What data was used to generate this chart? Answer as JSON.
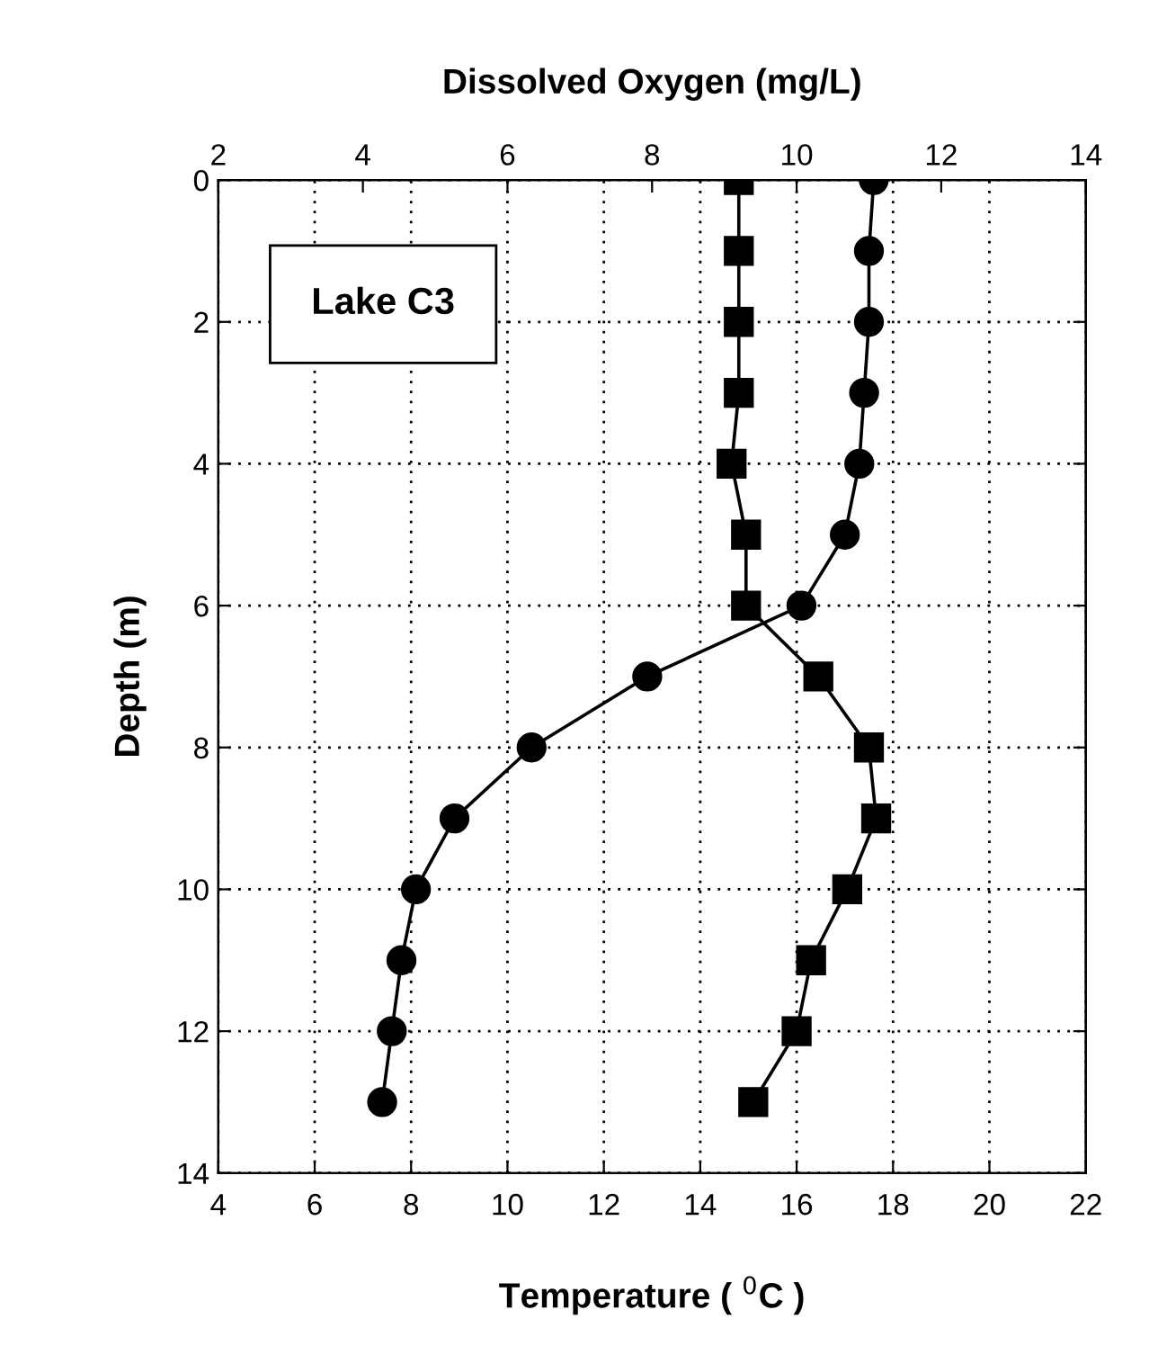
{
  "chart_data": {
    "type": "line",
    "xlabel": "Temperature ( $^{0}$C )",
    "x2label": "Dissolved Oxygen (mg/L)",
    "ylabel": "Depth (m)",
    "annotations": [
      "Lake C3"
    ],
    "xlim": [
      4,
      22
    ],
    "xticks": [
      4,
      6,
      8,
      10,
      12,
      14,
      16,
      18,
      20,
      22
    ],
    "x2lim": [
      2,
      14
    ],
    "x2ticks": [
      2,
      4,
      6,
      8,
      10,
      12,
      14
    ],
    "ylim": [
      14,
      0
    ],
    "yticks": [
      0,
      2,
      4,
      6,
      8,
      10,
      12,
      14
    ],
    "grid": true,
    "legend": false,
    "line_style": "solid",
    "series": [
      {
        "color": "#000000",
        "marker": "circle",
        "x": [
          17.6,
          17.5,
          17.5,
          17.4,
          17.3,
          17.0,
          16.1,
          12.9,
          10.5,
          8.9,
          8.1,
          7.8,
          7.6,
          7.4
        ],
        "values": [
          0,
          1,
          2,
          3,
          4,
          5,
          6,
          7,
          8,
          9,
          10,
          11,
          12,
          13
        ]
      },
      {
        "color": "#000000",
        "marker": "square",
        "axis": "x2",
        "x": [
          9.2,
          9.2,
          9.2,
          9.2,
          9.1,
          9.3,
          9.3,
          10.3,
          11.0,
          11.1,
          10.7,
          10.2,
          10.0,
          9.4
        ],
        "values": [
          0,
          1,
          2,
          3,
          4,
          5,
          6,
          7,
          8,
          9,
          10,
          11,
          12,
          13
        ]
      }
    ]
  }
}
